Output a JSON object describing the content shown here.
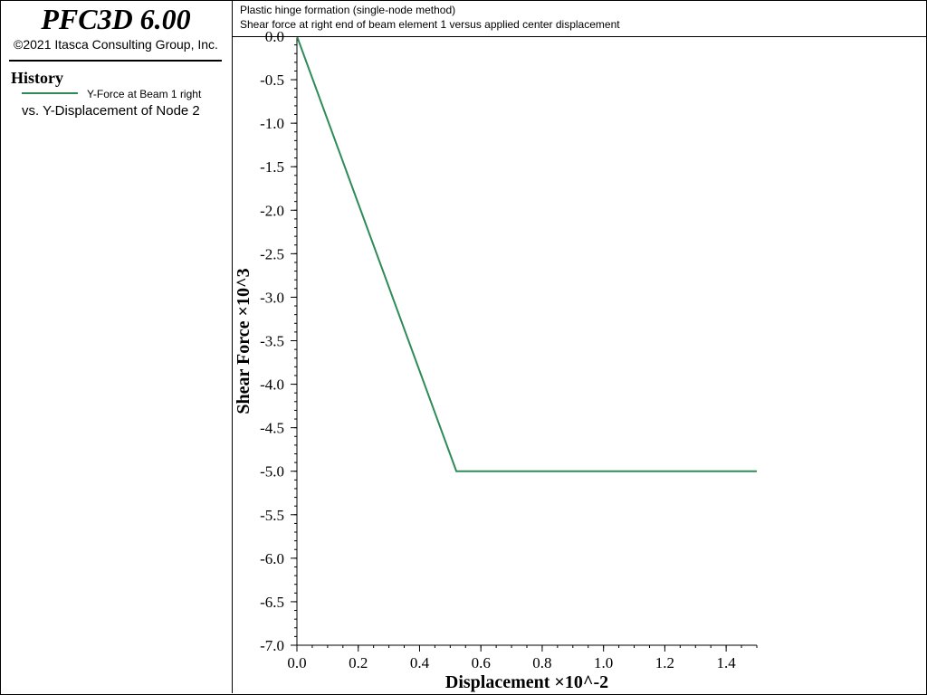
{
  "sidebar": {
    "app_title": "PFC3D 6.00",
    "copyright": "©2021 Itasca Consulting Group, Inc.",
    "history_title": "History",
    "legend_label": "Y-Force at Beam 1 right",
    "legend_sub": "vs. Y-Displacement of Node 2"
  },
  "header": {
    "line1": "Plastic hinge formation (single-node method)",
    "line2": "Shear force at right end of beam element 1 versus applied center displacement"
  },
  "colors": {
    "series": "#2e8b57"
  },
  "chart_data": {
    "type": "line",
    "xlabel": "Displacement ×10^-2",
    "ylabel": "Shear Force ×10^3",
    "xlim": [
      0.0,
      1.5
    ],
    "ylim": [
      -7.0,
      0.0
    ],
    "x_ticks": [
      "0.0",
      "0.2",
      "0.4",
      "0.6",
      "0.8",
      "1.0",
      "1.2",
      "1.4"
    ],
    "y_ticks": [
      "0.0",
      "-0.5",
      "-1.0",
      "-1.5",
      "-2.0",
      "-2.5",
      "-3.0",
      "-3.5",
      "-4.0",
      "-4.5",
      "-5.0",
      "-5.5",
      "-6.0",
      "-6.5",
      "-7.0"
    ],
    "grid": false,
    "legend": "sidebar",
    "series": [
      {
        "name": "Y-Force at Beam 1 right",
        "x": [
          0.0,
          0.52,
          1.5
        ],
        "y": [
          0.0,
          -5.0,
          -5.0
        ]
      }
    ]
  }
}
